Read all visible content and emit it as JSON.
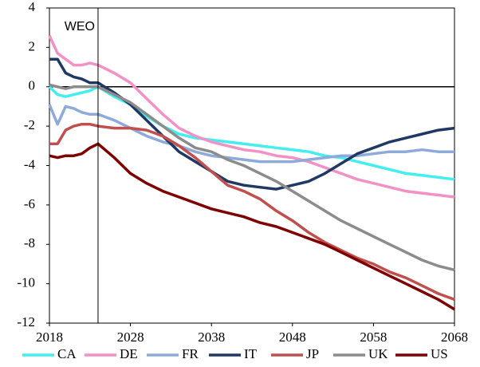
{
  "chart_data": {
    "type": "line",
    "x": [
      2018,
      2019,
      2020,
      2021,
      2022,
      2023,
      2024,
      2026,
      2028,
      2030,
      2032,
      2034,
      2036,
      2038,
      2040,
      2042,
      2044,
      2046,
      2048,
      2050,
      2052,
      2054,
      2056,
      2058,
      2060,
      2062,
      2064,
      2066,
      2068
    ],
    "series": [
      {
        "name": "CA",
        "color": "#44eeee",
        "values": [
          0,
          -0.4,
          -0.5,
          -0.4,
          -0.3,
          -0.2,
          0,
          -0.5,
          -0.9,
          -1.5,
          -2.0,
          -2.4,
          -2.6,
          -2.7,
          -2.8,
          -2.9,
          -3.0,
          -3.1,
          -3.2,
          -3.3,
          -3.5,
          -3.6,
          -3.8,
          -4.0,
          -4.2,
          -4.4,
          -4.5,
          -4.6,
          -4.7
        ]
      },
      {
        "name": "DE",
        "color": "#f291c6",
        "values": [
          2.6,
          1.7,
          1.4,
          1.1,
          1.1,
          1.2,
          1.1,
          0.7,
          0.2,
          -0.6,
          -1.4,
          -2.1,
          -2.5,
          -2.8,
          -3.0,
          -3.2,
          -3.3,
          -3.5,
          -3.6,
          -3.8,
          -4.1,
          -4.4,
          -4.7,
          -4.9,
          -5.1,
          -5.3,
          -5.4,
          -5.5,
          -5.6
        ]
      },
      {
        "name": "FR",
        "color": "#8eaadb",
        "values": [
          -0.9,
          -1.9,
          -1.0,
          -1.1,
          -1.3,
          -1.4,
          -1.4,
          -1.7,
          -2.1,
          -2.5,
          -2.8,
          -3.0,
          -3.3,
          -3.5,
          -3.6,
          -3.7,
          -3.8,
          -3.8,
          -3.8,
          -3.7,
          -3.6,
          -3.5,
          -3.5,
          -3.4,
          -3.3,
          -3.3,
          -3.2,
          -3.3,
          -3.3
        ]
      },
      {
        "name": "IT",
        "color": "#1f3864",
        "values": [
          1.4,
          1.4,
          0.7,
          0.5,
          0.4,
          0.2,
          0.2,
          -0.3,
          -0.9,
          -1.7,
          -2.5,
          -3.3,
          -3.8,
          -4.3,
          -4.8,
          -5.0,
          -5.1,
          -5.2,
          -5.0,
          -4.8,
          -4.4,
          -3.9,
          -3.4,
          -3.1,
          -2.8,
          -2.6,
          -2.4,
          -2.2,
          -2.1
        ]
      },
      {
        "name": "JP",
        "color": "#c0504d",
        "values": [
          -2.9,
          -2.9,
          -2.2,
          -2.0,
          -1.9,
          -1.9,
          -2.0,
          -2.1,
          -2.1,
          -2.2,
          -2.5,
          -3.0,
          -3.6,
          -4.3,
          -5.0,
          -5.3,
          -5.7,
          -6.3,
          -6.8,
          -7.4,
          -7.9,
          -8.3,
          -8.7,
          -9.0,
          -9.4,
          -9.7,
          -10.1,
          -10.5,
          -10.8
        ]
      },
      {
        "name": "UK",
        "color": "#8c8c8c",
        "values": [
          0.1,
          0.0,
          -0.1,
          0.0,
          0.0,
          0.0,
          0.0,
          -0.4,
          -0.8,
          -1.4,
          -2.0,
          -2.6,
          -3.1,
          -3.3,
          -3.7,
          -4.0,
          -4.4,
          -4.8,
          -5.3,
          -5.8,
          -6.3,
          -6.8,
          -7.2,
          -7.6,
          -8.0,
          -8.4,
          -8.8,
          -9.1,
          -9.3
        ]
      },
      {
        "name": "US",
        "color": "#7f0000",
        "values": [
          -3.5,
          -3.6,
          -3.5,
          -3.5,
          -3.4,
          -3.1,
          -2.9,
          -3.6,
          -4.4,
          -4.9,
          -5.3,
          -5.6,
          -5.9,
          -6.2,
          -6.4,
          -6.6,
          -6.9,
          -7.1,
          -7.4,
          -7.7,
          -8.0,
          -8.4,
          -8.8,
          -9.2,
          -9.6,
          -10.0,
          -10.4,
          -10.8,
          -11.3
        ]
      }
    ],
    "xlim": [
      2018,
      2068
    ],
    "xticks": [
      2018,
      2028,
      2038,
      2048,
      2058,
      2068
    ],
    "ylim": [
      -12,
      4
    ],
    "yticks": [
      -12,
      -10,
      -8,
      -6,
      -4,
      -2,
      0,
      2,
      4
    ],
    "reference_line": 0,
    "annotation": {
      "text": "WEO",
      "x": 2024
    },
    "legend": "bottom"
  }
}
